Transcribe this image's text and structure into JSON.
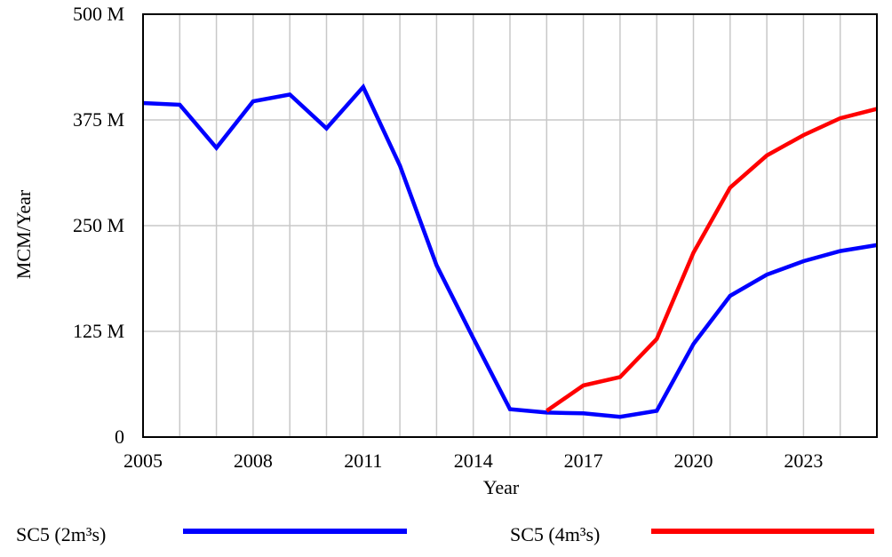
{
  "chart_data": {
    "type": "line",
    "title": "",
    "xlabel": "Year",
    "ylabel": "MCM/Year",
    "xlim": [
      2005,
      2025
    ],
    "ylim": [
      0,
      500000000
    ],
    "x_ticks": [
      2005,
      2008,
      2011,
      2014,
      2017,
      2020,
      2023
    ],
    "x_tick_labels": [
      "2005",
      "2008",
      "2011",
      "2014",
      "2017",
      "2020",
      "2023"
    ],
    "y_ticks": [
      0,
      125000000,
      250000000,
      375000000,
      500000000
    ],
    "y_tick_labels": [
      "0",
      "125 M",
      "250 M",
      "375 M",
      "500 M"
    ],
    "grid": true,
    "legend_position": "bottom",
    "series": [
      {
        "name": "SC5 (2m³s)",
        "color": "#0000ff",
        "points": [
          [
            2005,
            395000000
          ],
          [
            2006,
            393000000
          ],
          [
            2007,
            342000000
          ],
          [
            2008,
            397000000
          ],
          [
            2009,
            405000000
          ],
          [
            2010,
            365000000
          ],
          [
            2011,
            414000000
          ],
          [
            2012,
            321000000
          ],
          [
            2013,
            203000000
          ],
          [
            2014,
            117000000
          ],
          [
            2015,
            33000000
          ],
          [
            2016,
            29000000
          ],
          [
            2017,
            28000000
          ],
          [
            2018,
            24000000
          ],
          [
            2019,
            31000000
          ],
          [
            2020,
            110000000
          ],
          [
            2021,
            167000000
          ],
          [
            2022,
            192000000
          ],
          [
            2023,
            208000000
          ],
          [
            2024,
            220000000
          ],
          [
            2025,
            227000000
          ]
        ]
      },
      {
        "name": "SC5 (4m³s)",
        "color": "#ff0000",
        "points": [
          [
            2016,
            31000000
          ],
          [
            2017,
            61000000
          ],
          [
            2018,
            71000000
          ],
          [
            2019,
            116000000
          ],
          [
            2020,
            218000000
          ],
          [
            2021,
            295000000
          ],
          [
            2022,
            333000000
          ],
          [
            2023,
            357000000
          ],
          [
            2024,
            377000000
          ],
          [
            2025,
            388000000
          ]
        ]
      }
    ]
  }
}
